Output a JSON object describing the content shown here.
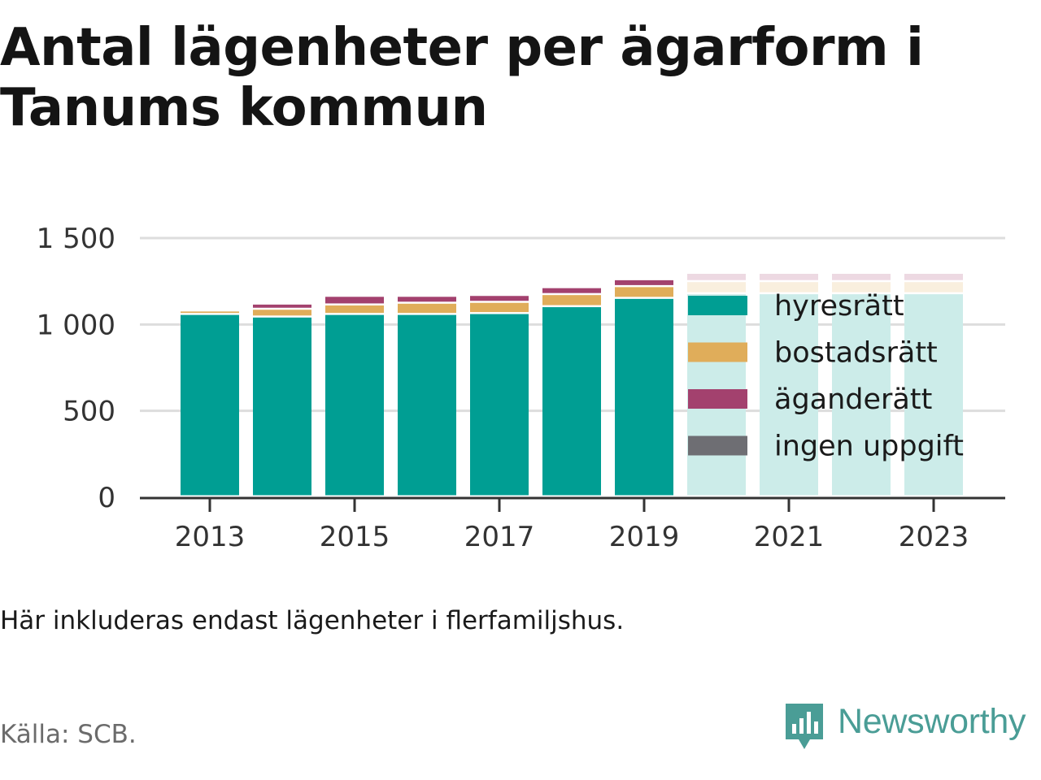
{
  "title": "Antal lägenheter per ägarform i Tanums kommun",
  "note": "Här inkluderas endast lägenheter i flerfamiljshus.",
  "source": "Källa: SCB.",
  "logo": {
    "text": "Newsworthy",
    "icon": "newsworthy-chart-bubble-icon",
    "color": "#4a9d96"
  },
  "chart_data": {
    "type": "bar",
    "stacked": true,
    "categories": [
      "2013",
      "2014",
      "2015",
      "2016",
      "2017",
      "2018",
      "2019",
      "2020",
      "2021",
      "2022",
      "2023"
    ],
    "x_tick_labels": [
      "2013",
      "2015",
      "2017",
      "2019",
      "2021",
      "2023"
    ],
    "y_ticks": [
      0,
      500,
      1000,
      1500
    ],
    "y_tick_labels": [
      "0",
      "500",
      "1 000",
      "1 500"
    ],
    "ylim": [
      0,
      1500
    ],
    "grid": true,
    "legend_position": "right, over bars",
    "highlight_years": [
      "2013",
      "2014",
      "2015",
      "2016",
      "2017",
      "2018",
      "2019"
    ],
    "series": [
      {
        "name": "hyresrätt",
        "color": "#009e93",
        "values": [
          1055,
          1040,
          1055,
          1055,
          1060,
          1100,
          1148,
          1175,
          1175,
          1175,
          1175
        ]
      },
      {
        "name": "bostadsrätt",
        "color": "#e0ad5a",
        "values": [
          20,
          45,
          55,
          65,
          65,
          70,
          68,
          70,
          70,
          70,
          70
        ]
      },
      {
        "name": "äganderätt",
        "color": "#a3416e",
        "values": [
          10,
          30,
          50,
          40,
          40,
          40,
          40,
          48,
          48,
          48,
          48
        ]
      },
      {
        "name": "ingen uppgift",
        "color": "#6e6e73",
        "values": [
          0,
          0,
          0,
          0,
          0,
          0,
          0,
          0,
          0,
          0,
          0
        ]
      }
    ]
  }
}
